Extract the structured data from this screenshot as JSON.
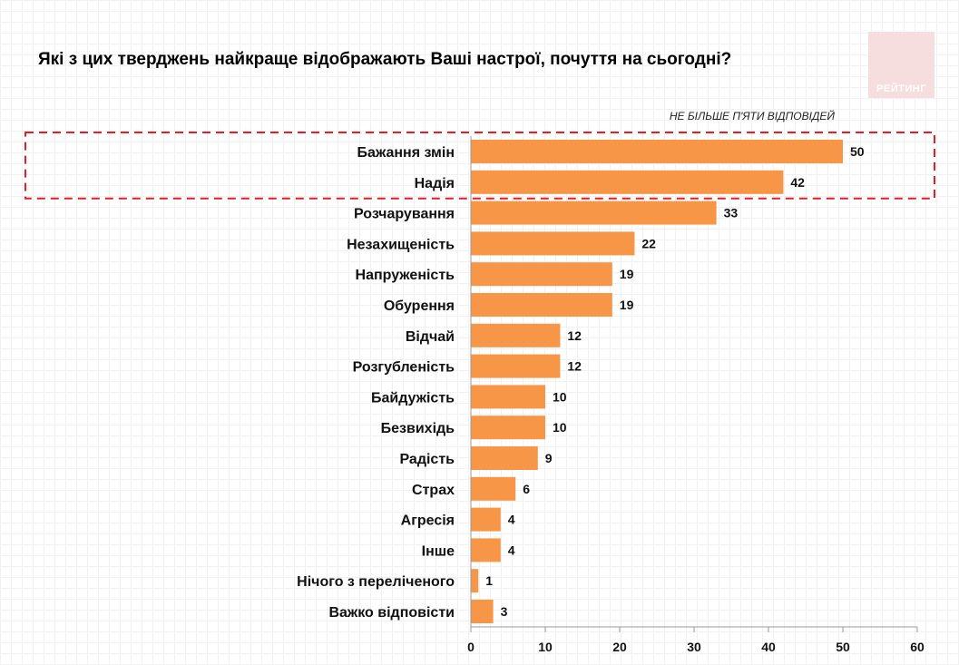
{
  "header": {
    "title": "Які з цих тверджень найкраще відображають Ваші настрої, почуття на сьогодні?",
    "note": "НЕ БІЛЬШЕ П'ЯТИ ВІДПОВІДЕЙ",
    "logo_text": "РЕЙТИНГ"
  },
  "chart_data": {
    "type": "bar",
    "orientation": "horizontal",
    "title": "Які з цих тверджень найкраще відображають Ваші настрої, почуття на сьогодні?",
    "categories": [
      "Бажання змін",
      "Надія",
      "Розчарування",
      "Незахищеність",
      "Напруженість",
      "Обурення",
      "Відчай",
      "Розгубленість",
      "Байдужість",
      "Безвихідь",
      "Радість",
      "Страх",
      "Агресія",
      "Інше",
      "Нічого з переліченого",
      "Важко відповісти"
    ],
    "values": [
      50,
      42,
      33,
      22,
      19,
      19,
      12,
      12,
      10,
      10,
      9,
      6,
      4,
      4,
      1,
      3
    ],
    "xlim": [
      0,
      60
    ],
    "xticks": [
      0,
      10,
      20,
      30,
      40,
      50,
      60
    ],
    "bar_color": "#f79646",
    "highlight_color": "#e31e24",
    "highlighted_categories": [
      "Бажання змін",
      "Надія"
    ],
    "grid": false,
    "legend": "none"
  }
}
